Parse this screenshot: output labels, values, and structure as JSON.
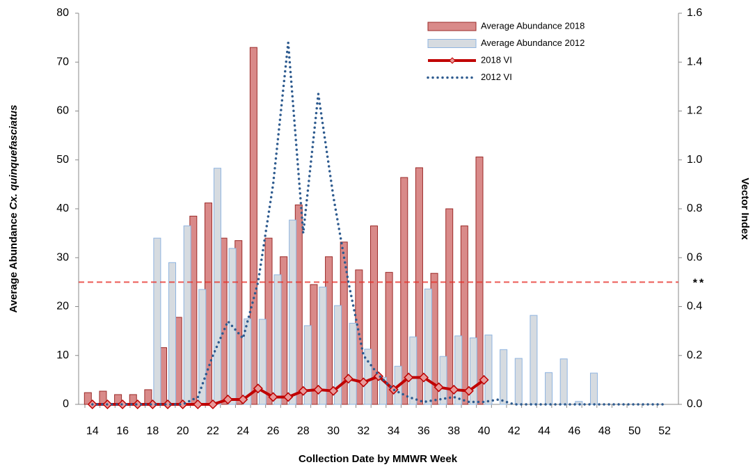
{
  "chart_data": {
    "type": "bar",
    "x_label": "Collection Date by MMWR Week",
    "y_label": {
      "text": "Average Abundance",
      "italic": "Cx. quinquefasciatus"
    },
    "y2_label": "Vector Index",
    "categories": [
      "14",
      null,
      "16",
      null,
      "18",
      null,
      "20",
      null,
      "22",
      null,
      "24",
      null,
      "26",
      null,
      "28",
      null,
      "30",
      null,
      "32",
      null,
      "34",
      null,
      "36",
      null,
      "38",
      null,
      "40",
      null,
      "42",
      null,
      "44",
      null,
      "46",
      null,
      "48",
      null,
      "50",
      null,
      "52"
    ],
    "ylim": [
      0,
      80
    ],
    "yticks": [
      0,
      10,
      20,
      30,
      40,
      50,
      60,
      70,
      80
    ],
    "y2lim": [
      0,
      1.6
    ],
    "y2ticks": [
      {
        "value": 0,
        "label": "0.0"
      },
      0.2,
      0.4,
      0.6,
      0.8,
      {
        "value": 1,
        "label": "1.0"
      },
      1.2,
      1.4,
      1.6
    ],
    "reference_line": {
      "value": 25,
      "label": "**",
      "color": "#e8322b"
    },
    "series": [
      {
        "name": "Average Abundance 2018",
        "type": "bar",
        "color": "#d98a89",
        "edge": "#9b2a28",
        "values": [
          2.4,
          2.7,
          2.0,
          2.0,
          3.0,
          11.6,
          17.8,
          38.5,
          41.2,
          34.0,
          33.5,
          73.0,
          34.0,
          30.2,
          40.8,
          24.5,
          30.2,
          33.2,
          27.5,
          36.5,
          27.0,
          46.4,
          48.4,
          26.8,
          40.0,
          36.5,
          50.6,
          null,
          null,
          null,
          null,
          null,
          null,
          null,
          null,
          null,
          null,
          null,
          null
        ]
      },
      {
        "name": "Average Abundance 2012",
        "type": "bar",
        "color": "#d6dbe0",
        "edge": "#8fb4e0",
        "values": [
          null,
          null,
          null,
          null,
          34.0,
          29.0,
          36.5,
          23.5,
          48.3,
          31.9,
          17.5,
          17.4,
          26.5,
          37.7,
          16.1,
          24.0,
          20.2,
          16.6,
          11.3,
          5.5,
          7.8,
          13.8,
          23.6,
          9.8,
          14.0,
          13.6,
          14.2,
          11.2,
          9.4,
          18.2,
          6.5,
          9.3,
          0.6,
          6.4,
          0,
          0,
          0,
          0,
          0
        ]
      },
      {
        "name": "2018 VI",
        "type": "line",
        "axis": "y2",
        "color": "#c00000",
        "marker": "diamond",
        "values": [
          0,
          0,
          0,
          0,
          0,
          0,
          0,
          0,
          0,
          0.02,
          0.02,
          0.065,
          0.03,
          0.03,
          0.055,
          0.06,
          0.055,
          0.105,
          0.09,
          0.115,
          0.06,
          0.11,
          0.11,
          0.07,
          0.06,
          0.055,
          0.1,
          null,
          null,
          null,
          null,
          null,
          null,
          null,
          null,
          null,
          null,
          null,
          null
        ]
      },
      {
        "name": "2012 VI",
        "type": "line",
        "axis": "y2",
        "color": "#2e5b8f",
        "dash": "dotted",
        "values": [
          0,
          0,
          0,
          0,
          0,
          0,
          0,
          0.03,
          0.2,
          0.34,
          0.27,
          0.5,
          0.9,
          1.48,
          0.7,
          1.27,
          0.85,
          0.5,
          0.2,
          0.12,
          0.06,
          0.03,
          0.01,
          0.02,
          0.03,
          0.01,
          0.01,
          0.02,
          0,
          0,
          0,
          0,
          0,
          0,
          0,
          0,
          0,
          0,
          0
        ]
      }
    ]
  }
}
